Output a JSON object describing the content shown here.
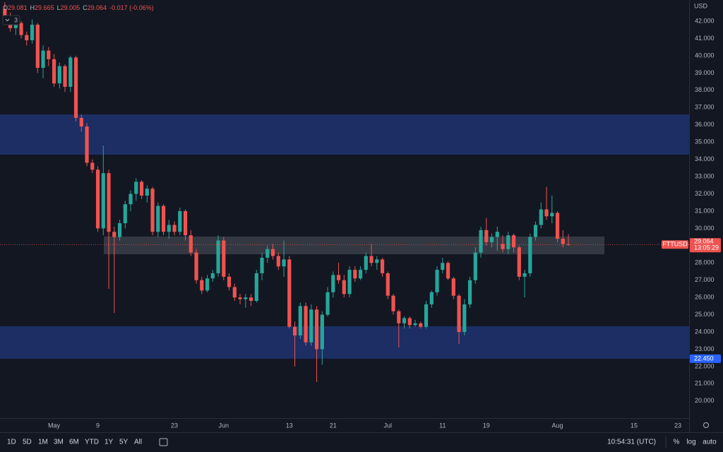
{
  "chart_data": {
    "type": "candlestick",
    "symbol": "FTTUSD",
    "currency": "USD",
    "indicator_count": "3",
    "ohlc_legend": [
      {
        "key": "O",
        "value": "29.081"
      },
      {
        "key": "H",
        "value": "29.665"
      },
      {
        "key": "L",
        "value": "29.005"
      },
      {
        "key": "C",
        "value": "29.064"
      }
    ],
    "change": "-0.017 (-0.06%)",
    "up_color": "#26a69a",
    "down_color": "#ef5350",
    "categories": [
      null,
      null,
      null,
      null,
      null,
      null,
      null,
      null,
      null,
      "May",
      null,
      null,
      null,
      null,
      null,
      null,
      null,
      "9",
      null,
      null,
      null,
      null,
      null,
      null,
      null,
      null,
      null,
      null,
      null,
      null,
      null,
      "23",
      null,
      null,
      null,
      null,
      null,
      null,
      null,
      null,
      "Jun",
      null,
      null,
      null,
      null,
      null,
      null,
      null,
      null,
      null,
      null,
      null,
      "13",
      null,
      null,
      null,
      null,
      null,
      null,
      null,
      "21",
      null,
      null,
      null,
      null,
      null,
      null,
      null,
      null,
      null,
      "Jul",
      null,
      null,
      null,
      null,
      null,
      null,
      null,
      null,
      null,
      "11",
      null,
      null,
      null,
      null,
      null,
      null,
      null,
      "19",
      null,
      null,
      null,
      null,
      null,
      null,
      null,
      null,
      null,
      null,
      null,
      null,
      "Aug",
      null,
      null,
      null,
      null,
      null,
      null,
      null,
      null,
      null,
      null,
      null,
      null,
      null,
      "15",
      null,
      null,
      null,
      null,
      null,
      null,
      null,
      "23",
      null
    ],
    "open": [
      42.7,
      42.3,
      41.6,
      41.9,
      41.2,
      40.9,
      41.8,
      39.3,
      40.3,
      39.8,
      38.4,
      39.4,
      38.2,
      39.9,
      36.4,
      35.9,
      33.8,
      33.4,
      30.0,
      33.2,
      29.8,
      29.5,
      30.3,
      31.4,
      32.0,
      32.7,
      31.9,
      32.3,
      29.8,
      31.3,
      29.8,
      30.2,
      29.8,
      31.0,
      29.6,
      28.6,
      27.0,
      26.4,
      27.1,
      27.4,
      29.3,
      27.2,
      26.6,
      26.0,
      25.9,
      26.0,
      25.8,
      27.4,
      28.3,
      28.8,
      28.4,
      27.8,
      28.2,
      24.3,
      23.8,
      25.5,
      23.4,
      25.3,
      23.0,
      25.0,
      26.3,
      27.3,
      27.0,
      26.2,
      27.6,
      27.1,
      27.6,
      28.4,
      28.0,
      28.2,
      27.4,
      26.1,
      25.2,
      24.5,
      24.8,
      24.4,
      24.5,
      24.3,
      25.6,
      26.3,
      27.6,
      28.0,
      27.1,
      26.1,
      24.0,
      25.6,
      27.0,
      28.6,
      29.9,
      29.2,
      29.5,
      29.1,
      28.8,
      29.6,
      28.9,
      27.2,
      27.4,
      29.5,
      30.2,
      31.1,
      30.7,
      30.9,
      29.4,
      29.081,
      null,
      null,
      null,
      null,
      null,
      null,
      null,
      null,
      null,
      null,
      null,
      null,
      null,
      null,
      null,
      null,
      null,
      null,
      null,
      null,
      null
    ],
    "high": [
      43.1,
      42.5,
      42.2,
      42.0,
      41.4,
      42.1,
      41.9,
      40.6,
      40.5,
      40.1,
      39.6,
      39.5,
      40.0,
      40.0,
      36.6,
      36.1,
      34.0,
      33.6,
      34.8,
      33.4,
      30.1,
      30.5,
      31.6,
      32.2,
      32.9,
      32.8,
      32.5,
      32.4,
      31.5,
      31.4,
      30.5,
      30.4,
      31.2,
      31.1,
      29.9,
      28.8,
      27.2,
      27.3,
      27.6,
      29.6,
      29.5,
      27.4,
      26.8,
      26.2,
      26.2,
      26.2,
      27.6,
      28.6,
      29.0,
      29.1,
      28.6,
      29.3,
      28.4,
      24.6,
      25.7,
      25.7,
      25.6,
      25.5,
      25.2,
      26.6,
      27.5,
      28.0,
      27.3,
      27.8,
      27.8,
      27.8,
      28.6,
      29.1,
      28.4,
      28.3,
      27.5,
      26.2,
      25.3,
      24.9,
      24.9,
      24.7,
      24.6,
      25.8,
      26.4,
      27.8,
      28.3,
      28.1,
      27.2,
      26.2,
      25.9,
      27.2,
      28.9,
      30.1,
      30.6,
      29.7,
      30.1,
      29.6,
      29.8,
      29.7,
      29.0,
      27.6,
      29.7,
      30.4,
      31.5,
      32.4,
      31.9,
      31.0,
      29.9,
      29.665,
      null,
      null,
      null,
      null,
      null,
      null,
      null,
      null,
      null,
      null,
      null,
      null,
      null,
      null,
      null,
      null,
      null,
      null,
      null,
      null,
      null
    ],
    "low": [
      42.0,
      41.4,
      41.2,
      41.0,
      40.6,
      40.7,
      39.0,
      38.7,
      39.4,
      38.2,
      38.1,
      37.9,
      37.9,
      36.2,
      35.6,
      33.6,
      33.2,
      29.8,
      29.6,
      26.5,
      25.1,
      29.3,
      30.0,
      31.0,
      31.6,
      31.7,
      31.5,
      29.6,
      29.5,
      29.6,
      29.4,
      29.6,
      29.6,
      29.3,
      28.4,
      26.8,
      26.2,
      26.3,
      26.9,
      27.2,
      27.0,
      26.4,
      25.8,
      25.6,
      25.4,
      25.5,
      25.7,
      27.0,
      28.0,
      28.2,
      27.6,
      27.2,
      24.2,
      22.0,
      23.6,
      23.2,
      23.2,
      21.1,
      22.1,
      24.9,
      26.0,
      26.8,
      26.0,
      26.0,
      26.9,
      27.0,
      27.4,
      27.8,
      27.6,
      27.2,
      25.9,
      25.0,
      23.1,
      24.2,
      24.2,
      24.3,
      24.2,
      24.2,
      25.4,
      26.1,
      27.4,
      27.0,
      25.9,
      23.3,
      23.8,
      25.4,
      26.8,
      28.3,
      29.0,
      28.9,
      28.7,
      28.6,
      28.5,
      28.6,
      27.0,
      26.0,
      27.2,
      29.3,
      30.0,
      30.5,
      30.3,
      29.2,
      28.9,
      29.005,
      null,
      null,
      null,
      null,
      null,
      null,
      null,
      null,
      null,
      null,
      null,
      null,
      null,
      null,
      null,
      null,
      null,
      null,
      null,
      null,
      null
    ],
    "close": [
      42.3,
      41.6,
      41.9,
      41.2,
      40.9,
      41.8,
      39.3,
      40.3,
      39.8,
      38.4,
      39.4,
      38.2,
      39.9,
      36.4,
      35.9,
      33.8,
      33.4,
      30.0,
      33.2,
      29.8,
      29.5,
      30.3,
      31.4,
      32.0,
      32.7,
      31.9,
      32.3,
      29.8,
      31.3,
      29.8,
      30.2,
      29.8,
      31.0,
      29.6,
      28.6,
      27.0,
      26.4,
      27.1,
      27.4,
      29.3,
      27.2,
      26.6,
      26.0,
      25.9,
      26.0,
      25.8,
      27.4,
      28.3,
      28.8,
      28.4,
      27.8,
      28.2,
      24.3,
      23.8,
      25.5,
      23.4,
      25.3,
      23.0,
      25.0,
      26.3,
      27.3,
      27.0,
      26.2,
      27.6,
      27.1,
      27.6,
      28.4,
      28.0,
      28.2,
      27.4,
      26.1,
      25.2,
      24.5,
      24.8,
      24.4,
      24.5,
      24.3,
      25.6,
      26.3,
      27.6,
      28.0,
      27.1,
      26.1,
      24.0,
      25.6,
      27.0,
      28.6,
      29.9,
      29.2,
      29.5,
      29.8,
      28.8,
      29.6,
      28.9,
      27.2,
      27.4,
      29.5,
      30.2,
      31.1,
      30.7,
      30.9,
      29.4,
      29.1,
      29.064,
      null,
      null,
      null,
      null,
      null,
      null,
      null,
      null,
      null,
      null,
      null,
      null,
      null,
      null,
      null,
      null,
      null,
      null,
      null,
      null,
      null
    ],
    "zones": [
      {
        "top": 36.6,
        "bottom": 34.27,
        "color": "#1e3370"
      },
      {
        "top": 24.33,
        "bottom": 22.45,
        "color": "#1e3370"
      },
      {
        "top": 29.53,
        "bottom": 28.5,
        "color": "#3b3e48"
      }
    ],
    "last_price": {
      "value": 29.064,
      "label": "29.064",
      "countdown": "13:05:29",
      "color": "#ef5350"
    },
    "price_labels": [
      {
        "value": 22.45,
        "label": "22.450",
        "color": "#2962ff"
      }
    ],
    "ylim": [
      19.01,
      43.23
    ],
    "yticks": [
      {
        "value": 20,
        "label": "20.000"
      },
      {
        "value": 21,
        "label": "21.000"
      },
      {
        "value": 22,
        "label": "22.000"
      },
      {
        "value": 23,
        "label": "23.000"
      },
      {
        "value": 24,
        "label": "24.000"
      },
      {
        "value": 25,
        "label": "25.000"
      },
      {
        "value": 26,
        "label": "26.000"
      },
      {
        "value": 27,
        "label": "27.000"
      },
      {
        "value": 28,
        "label": "28.000"
      },
      {
        "value": 29,
        "label": "29.000"
      },
      {
        "value": 30,
        "label": "30.000"
      },
      {
        "value": 31,
        "label": "31.000"
      },
      {
        "value": 32,
        "label": "32.000"
      },
      {
        "value": 33,
        "label": "33.000"
      },
      {
        "value": 34,
        "label": "34.000"
      },
      {
        "value": 35,
        "label": "35.000"
      },
      {
        "value": 36,
        "label": "36.000"
      },
      {
        "value": 37,
        "label": "37.000"
      },
      {
        "value": 38,
        "label": "38.000"
      },
      {
        "value": 39,
        "label": "39.000"
      },
      {
        "value": 40,
        "label": "40.000"
      },
      {
        "value": 41,
        "label": "41.000"
      },
      {
        "value": 42,
        "label": "42.000"
      }
    ],
    "grid": false,
    "log_scale": false,
    "ranges": [
      "1D",
      "5D",
      "1M",
      "3M",
      "6M",
      "YTD",
      "1Y",
      "5Y",
      "All"
    ],
    "clock": "10:54:31 (UTC)",
    "scale_buttons": [
      "%",
      "log",
      "auto"
    ]
  }
}
